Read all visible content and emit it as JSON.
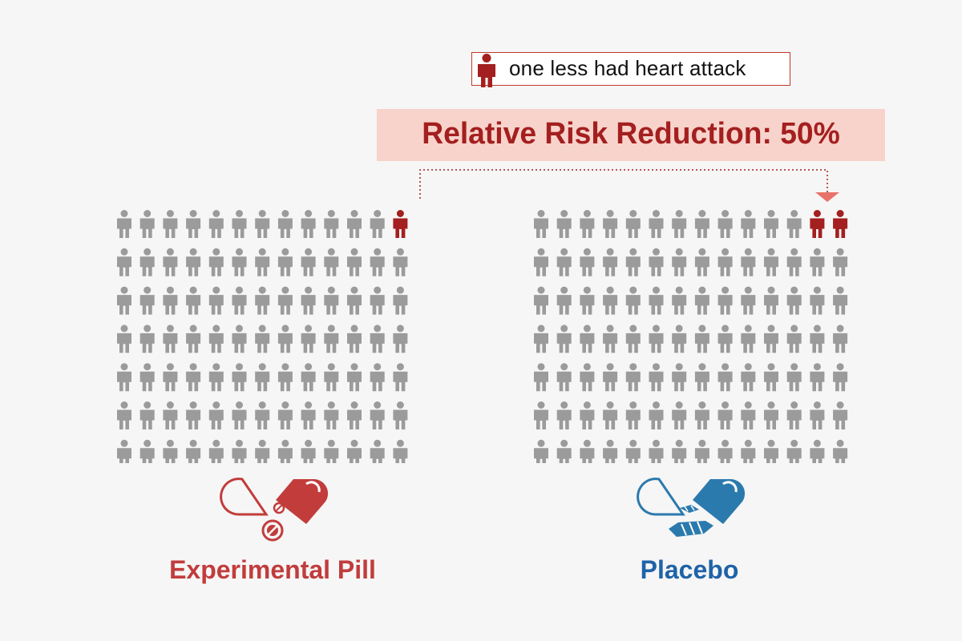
{
  "legend": {
    "label": "one less had heart attack",
    "icon": "person-icon",
    "icon_color": "#a41f1f"
  },
  "headline": {
    "text": "Relative Risk Reduction: 50%",
    "text_color": "#a41f1f",
    "background_color": "#f7d3cb",
    "arrow_color": "#e8736a"
  },
  "groups": [
    {
      "key": "experimental",
      "label": "Experimental Pill",
      "label_color": "#c23c3c",
      "icon": "experimental-pill-icon",
      "total": 91,
      "rows": 7,
      "columns": 13,
      "highlighted": 1
    },
    {
      "key": "placebo",
      "label": "Placebo",
      "label_color": "#1f63a8",
      "icon": "placebo-pill-icon",
      "total": 98,
      "rows": 7,
      "columns": 14,
      "highlighted": 2
    }
  ],
  "colors": {
    "person_default": "#9b9b9b",
    "person_highlight": "#a41f1f"
  }
}
